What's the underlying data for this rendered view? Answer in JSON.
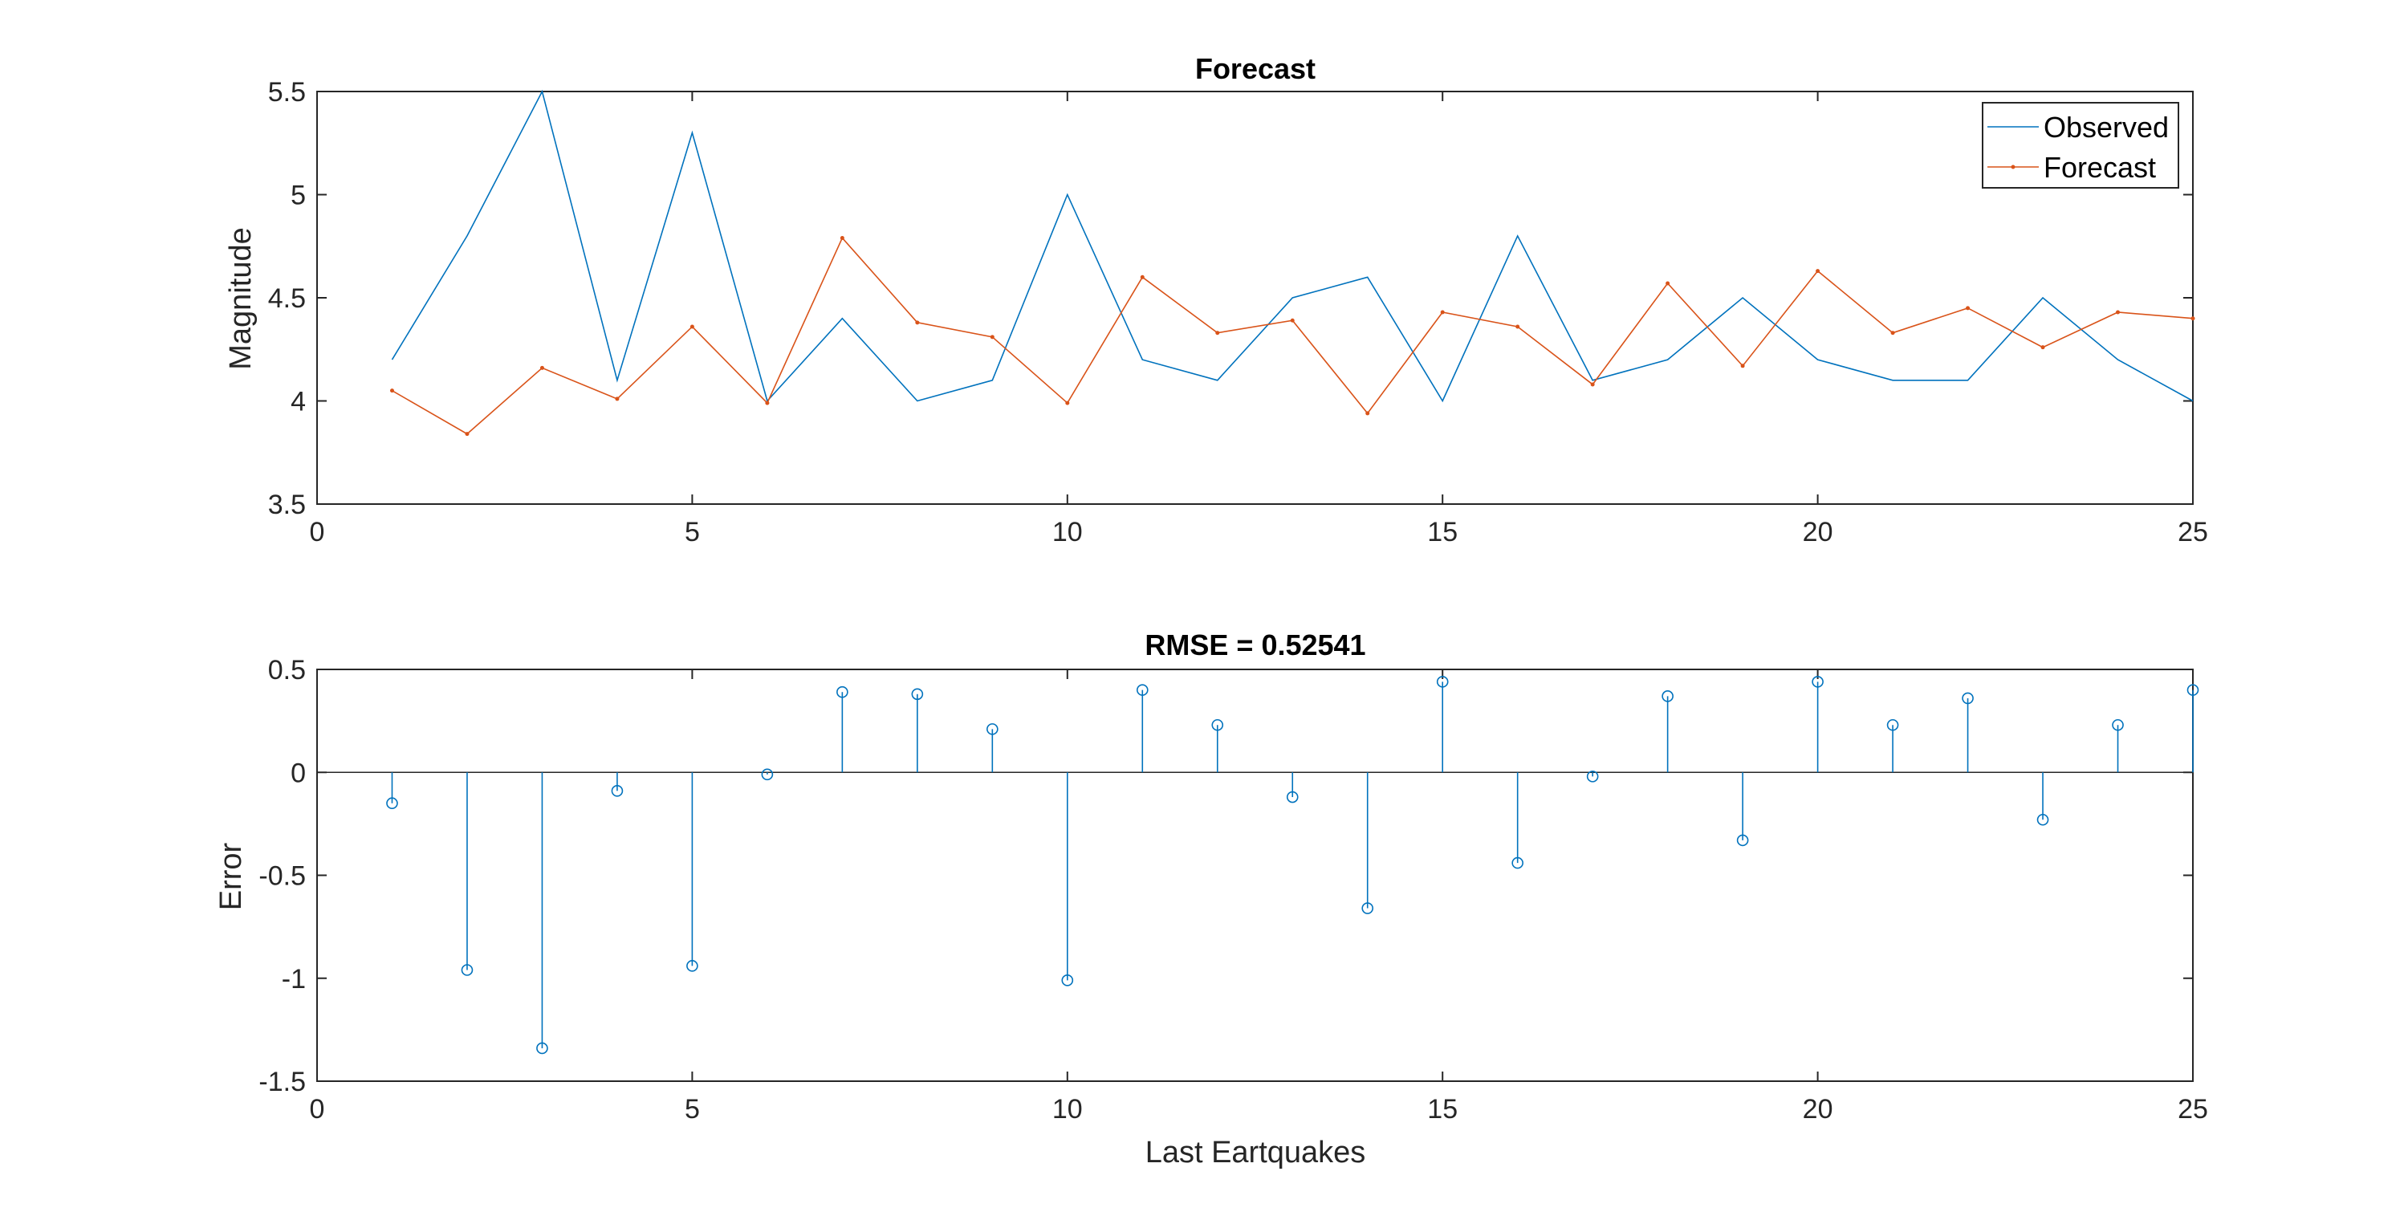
{
  "chart_data": [
    {
      "type": "line",
      "title": "Forecast",
      "xlabel": "",
      "ylabel": "Magnitude",
      "xlim": [
        0,
        25
      ],
      "ylim": [
        3.5,
        5.5
      ],
      "xticks": [
        0,
        5,
        10,
        15,
        20,
        25
      ],
      "yticks": [
        3.5,
        4,
        4.5,
        5,
        5.5
      ],
      "grid": false,
      "legend_position": "top-right",
      "x": [
        1,
        2,
        3,
        4,
        5,
        6,
        7,
        8,
        9,
        10,
        11,
        12,
        13,
        14,
        15,
        16,
        17,
        18,
        19,
        20,
        21,
        22,
        23,
        24,
        25
      ],
      "series": [
        {
          "name": "Observed",
          "color": "#0072BD",
          "marker": "none",
          "values": [
            4.2,
            4.8,
            5.5,
            4.1,
            5.3,
            4.0,
            4.4,
            4.0,
            4.1,
            5.0,
            4.2,
            4.1,
            4.5,
            4.6,
            4.0,
            4.8,
            4.1,
            4.2,
            4.5,
            4.2,
            4.1,
            4.1,
            4.5,
            4.2,
            4.0
          ]
        },
        {
          "name": "Forecast",
          "color": "#D95319",
          "marker": "dot",
          "values": [
            4.05,
            3.84,
            4.16,
            4.01,
            4.36,
            3.99,
            4.79,
            4.38,
            4.31,
            3.99,
            4.6,
            4.33,
            4.39,
            3.94,
            4.43,
            4.36,
            4.08,
            4.57,
            4.17,
            4.63,
            4.33,
            4.45,
            4.26,
            4.43,
            4.4
          ]
        }
      ]
    },
    {
      "type": "stem",
      "title": "RMSE = 0.52541",
      "xlabel": "Last Eartquakes",
      "ylabel": "Error",
      "xlim": [
        0,
        25
      ],
      "ylim": [
        -1.5,
        0.5
      ],
      "xticks": [
        0,
        5,
        10,
        15,
        20,
        25
      ],
      "yticks": [
        -1.5,
        -1,
        -0.5,
        0,
        0.5
      ],
      "grid": false,
      "x": [
        1,
        2,
        3,
        4,
        5,
        6,
        7,
        8,
        9,
        10,
        11,
        12,
        13,
        14,
        15,
        16,
        17,
        18,
        19,
        20,
        21,
        22,
        23,
        24,
        25
      ],
      "series": [
        {
          "name": "",
          "color": "#0072BD",
          "marker": "circle",
          "values": [
            -0.15,
            -0.96,
            -1.34,
            -0.09,
            -0.94,
            -0.01,
            0.39,
            0.38,
            0.21,
            -1.01,
            0.4,
            0.23,
            -0.12,
            -0.66,
            0.44,
            -0.44,
            -0.02,
            0.37,
            -0.33,
            0.44,
            0.23,
            0.36,
            -0.23,
            0.23,
            0.4
          ]
        }
      ]
    }
  ]
}
